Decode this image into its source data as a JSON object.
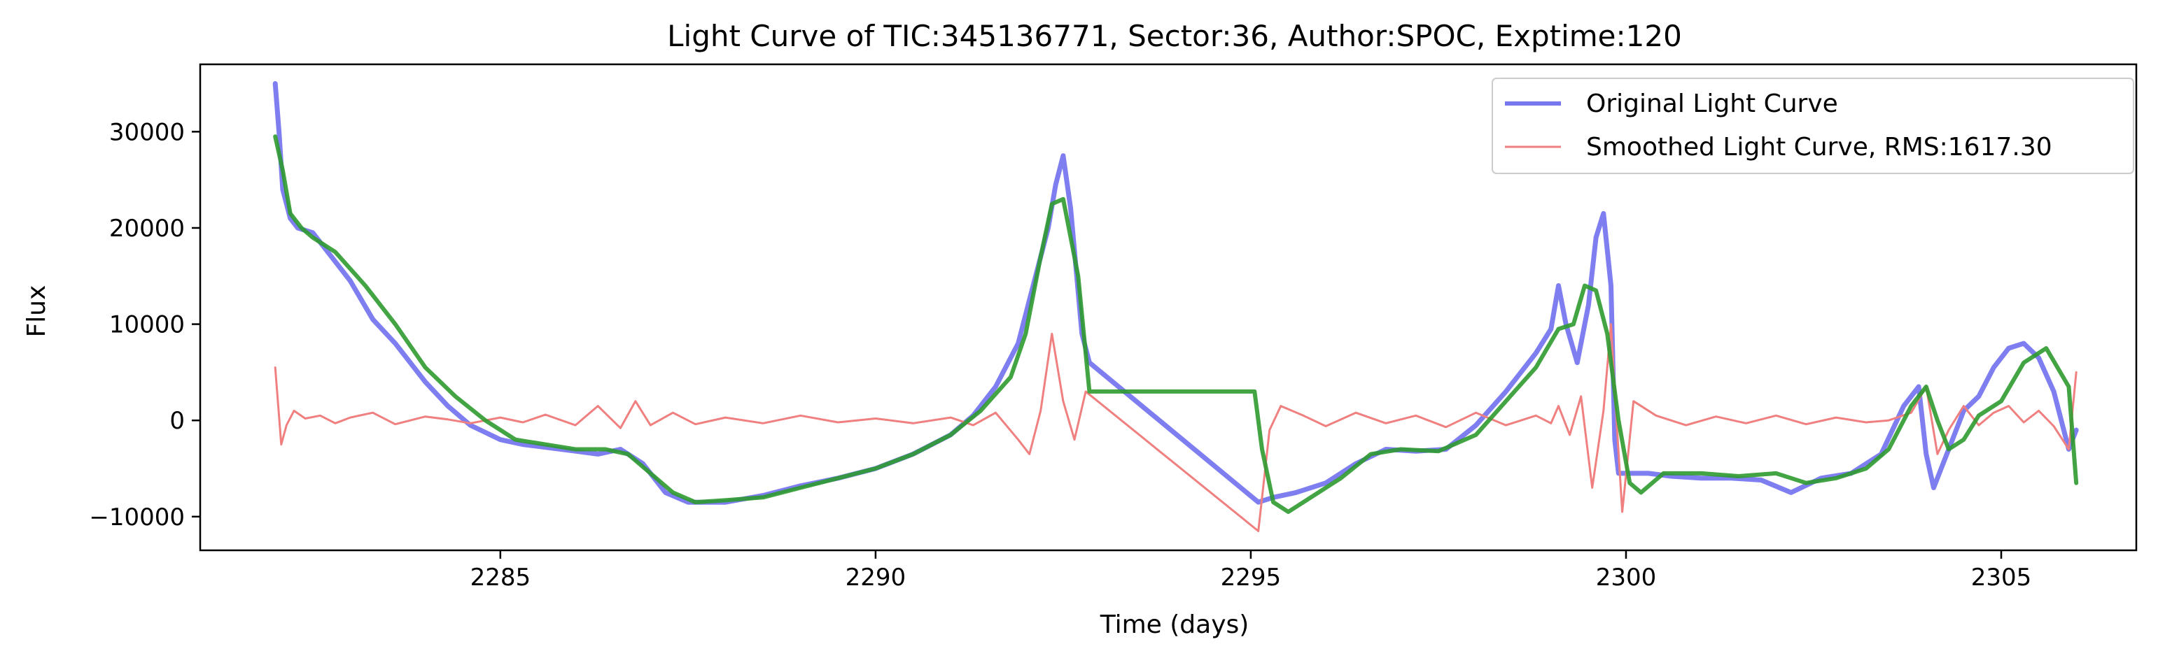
{
  "chart_data": {
    "type": "line",
    "title": "Light Curve of TIC:345136771, Sector:36, Author:SPOC, Exptime:120",
    "xlabel": "Time (days)",
    "ylabel": "Flux",
    "xlim": [
      2281.0,
      2306.8
    ],
    "ylim": [
      -13500,
      37000
    ],
    "xticks": [
      2285,
      2290,
      2295,
      2300,
      2305
    ],
    "yticks": [
      -10000,
      0,
      10000,
      20000,
      30000
    ],
    "grid": false,
    "legend_position": "top-right",
    "series": [
      {
        "name": "Original Light Curve",
        "color": "#7777f0",
        "x": [
          2282.0,
          2282.05,
          2282.1,
          2282.2,
          2282.3,
          2282.5,
          2282.7,
          2283.0,
          2283.3,
          2283.6,
          2284.0,
          2284.3,
          2284.6,
          2285.0,
          2285.3,
          2285.6,
          2286.0,
          2286.3,
          2286.6,
          2286.9,
          2287.2,
          2287.5,
          2288.0,
          2288.5,
          2289.0,
          2289.5,
          2290.0,
          2290.5,
          2291.0,
          2291.3,
          2291.6,
          2291.9,
          2292.1,
          2292.3,
          2292.4,
          2292.5,
          2292.6,
          2292.75,
          2292.85,
          2295.1,
          2295.3,
          2295.6,
          2296.0,
          2296.4,
          2296.8,
          2297.2,
          2297.6,
          2298.0,
          2298.4,
          2298.8,
          2299.0,
          2299.1,
          2299.2,
          2299.35,
          2299.5,
          2299.6,
          2299.7,
          2299.8,
          2299.85,
          2299.9,
          2300.0,
          2300.3,
          2300.6,
          2301.0,
          2301.4,
          2301.8,
          2302.2,
          2302.6,
          2303.0,
          2303.4,
          2303.7,
          2303.9,
          2304.0,
          2304.1,
          2304.3,
          2304.5,
          2304.7,
          2304.9,
          2305.1,
          2305.3,
          2305.5,
          2305.7,
          2305.9,
          2306.0
        ],
        "values": [
          35000,
          30000,
          24000,
          21000,
          20000,
          19500,
          17500,
          14500,
          10500,
          8000,
          4000,
          1500,
          -500,
          -2000,
          -2500,
          -2800,
          -3200,
          -3500,
          -3000,
          -4500,
          -7500,
          -8500,
          -8500,
          -7800,
          -6800,
          -6000,
          -5000,
          -3500,
          -1500,
          500,
          3500,
          8000,
          14000,
          20000,
          24500,
          27500,
          22000,
          9000,
          6000,
          -8500,
          -8000,
          -7500,
          -6500,
          -4500,
          -3000,
          -3200,
          -3000,
          -500,
          3000,
          7000,
          9500,
          14000,
          10000,
          6000,
          12000,
          19000,
          21500,
          14000,
          -2000,
          -5500,
          -5500,
          -5500,
          -5800,
          -6000,
          -6000,
          -6200,
          -7500,
          -6000,
          -5500,
          -3500,
          1500,
          3500,
          -3500,
          -7000,
          -3000,
          1000,
          2500,
          5500,
          7500,
          8000,
          6500,
          3000,
          -3000,
          -1000
        ]
      },
      {
        "name": "Smoothed Light Curve, RMS:1617.30",
        "color": "#f08080",
        "x": [
          2282.0,
          2282.08,
          2282.15,
          2282.25,
          2282.4,
          2282.6,
          2282.8,
          2283.0,
          2283.3,
          2283.6,
          2284.0,
          2284.3,
          2284.6,
          2285.0,
          2285.3,
          2285.6,
          2286.0,
          2286.3,
          2286.6,
          2286.8,
          2287.0,
          2287.3,
          2287.6,
          2288.0,
          2288.5,
          2289.0,
          2289.5,
          2290.0,
          2290.5,
          2291.0,
          2291.3,
          2291.6,
          2291.9,
          2292.05,
          2292.2,
          2292.35,
          2292.5,
          2292.65,
          2292.8,
          2295.1,
          2295.25,
          2295.4,
          2295.7,
          2296.0,
          2296.4,
          2296.8,
          2297.2,
          2297.6,
          2298.0,
          2298.4,
          2298.8,
          2299.0,
          2299.1,
          2299.25,
          2299.4,
          2299.55,
          2299.7,
          2299.8,
          2299.85,
          2299.95,
          2300.1,
          2300.4,
          2300.8,
          2301.2,
          2301.6,
          2302.0,
          2302.4,
          2302.8,
          2303.2,
          2303.5,
          2303.8,
          2304.0,
          2304.15,
          2304.3,
          2304.5,
          2304.7,
          2304.9,
          2305.1,
          2305.3,
          2305.5,
          2305.7,
          2305.9,
          2306.0
        ],
        "values": [
          5500,
          -2500,
          -500,
          1000,
          200,
          500,
          -300,
          300,
          800,
          -400,
          400,
          100,
          -300,
          300,
          -200,
          600,
          -500,
          1500,
          -800,
          2000,
          -500,
          800,
          -400,
          300,
          -300,
          500,
          -200,
          200,
          -300,
          300,
          -500,
          800,
          -2000,
          -3500,
          1000,
          9000,
          2000,
          -2000,
          3000,
          -11500,
          -1000,
          1500,
          500,
          -600,
          800,
          -300,
          500,
          -700,
          800,
          -500,
          500,
          -300,
          1500,
          -1500,
          2500,
          -7000,
          1000,
          10000,
          3000,
          -9500,
          2000,
          500,
          -500,
          400,
          -300,
          500,
          -400,
          300,
          -200,
          0,
          800,
          3500,
          -3500,
          -1000,
          1500,
          -500,
          800,
          1500,
          -200,
          1000,
          -600,
          -3000,
          5000
        ]
      },
      {
        "name": "",
        "color": "#2e9a2e",
        "x": [
          2282.0,
          2282.1,
          2282.2,
          2282.35,
          2282.5,
          2282.8,
          2283.2,
          2283.6,
          2284.0,
          2284.4,
          2284.8,
          2285.2,
          2285.6,
          2286.0,
          2286.4,
          2286.7,
          2287.0,
          2287.3,
          2287.6,
          2288.0,
          2288.5,
          2289.0,
          2289.5,
          2290.0,
          2290.5,
          2291.0,
          2291.4,
          2291.8,
          2292.0,
          2292.2,
          2292.35,
          2292.5,
          2292.7,
          2292.85,
          2295.05,
          2295.15,
          2295.3,
          2295.5,
          2295.8,
          2296.2,
          2296.6,
          2297.0,
          2297.5,
          2298.0,
          2298.4,
          2298.8,
          2299.1,
          2299.3,
          2299.45,
          2299.6,
          2299.75,
          2299.9,
          2300.05,
          2300.2,
          2300.5,
          2301.0,
          2301.5,
          2302.0,
          2302.4,
          2302.8,
          2303.2,
          2303.5,
          2303.8,
          2304.0,
          2304.15,
          2304.3,
          2304.5,
          2304.7,
          2305.0,
          2305.3,
          2305.6,
          2305.9,
          2306.0
        ],
        "values": [
          29500,
          26000,
          21500,
          20000,
          19000,
          17500,
          14000,
          10000,
          5500,
          2500,
          0,
          -2000,
          -2500,
          -3000,
          -3000,
          -3500,
          -5500,
          -7500,
          -8500,
          -8300,
          -8000,
          -7000,
          -6000,
          -5000,
          -3500,
          -1500,
          1000,
          4500,
          9000,
          17000,
          22500,
          23000,
          15000,
          3000,
          3000,
          -3000,
          -8500,
          -9500,
          -8000,
          -6000,
          -3500,
          -3000,
          -3200,
          -1500,
          2000,
          5500,
          9500,
          10000,
          14000,
          13500,
          9000,
          0,
          -6500,
          -7500,
          -5500,
          -5500,
          -5800,
          -5500,
          -6500,
          -6000,
          -5000,
          -3000,
          1500,
          3500,
          0,
          -3000,
          -2000,
          500,
          2000,
          6000,
          7500,
          3500,
          -6500
        ]
      }
    ]
  }
}
